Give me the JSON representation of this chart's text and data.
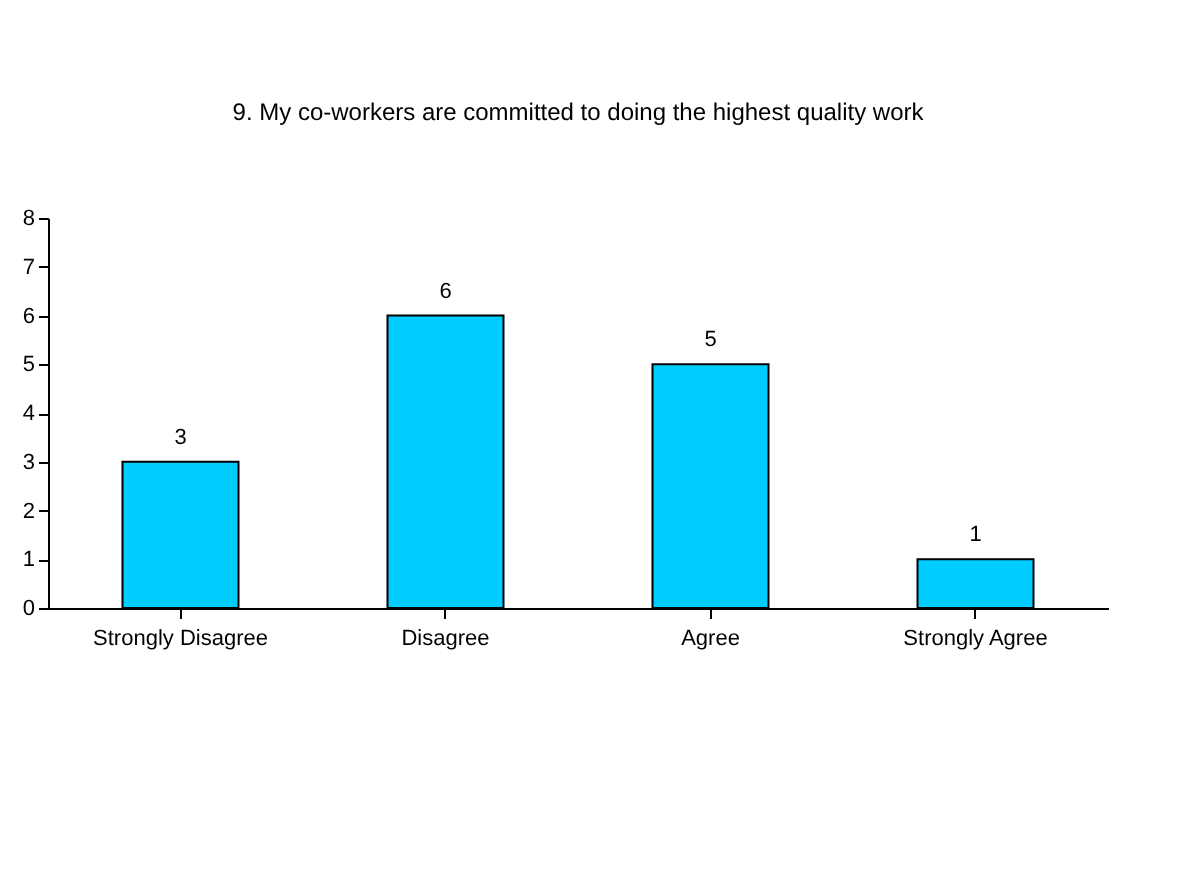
{
  "chart_data": {
    "type": "bar",
    "title": "9. My co-workers are committed to doing the highest quality work",
    "categories": [
      "Strongly Disagree",
      "Disagree",
      "Agree",
      "Strongly Agree"
    ],
    "values": [
      3,
      6,
      5,
      1
    ],
    "color": "#00ccff",
    "ylim": [
      0,
      8
    ],
    "yticks": [
      0,
      1,
      2,
      3,
      4,
      5,
      6,
      7,
      8
    ],
    "grid": false,
    "data_labels": true
  }
}
